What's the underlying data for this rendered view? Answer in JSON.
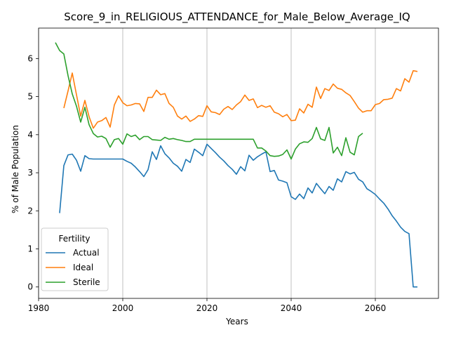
{
  "chart_data": {
    "type": "line",
    "title": "Score_9_in_RELIGIOUS_ATTENDANCE_for_Male_Below_Average_IQ",
    "xlabel": "Years",
    "ylabel": "% of Male Population",
    "xlim": [
      1980,
      2075
    ],
    "ylim": [
      -0.3,
      6.8
    ],
    "xticks": [
      1980,
      2000,
      2020,
      2040,
      2060
    ],
    "yticks": [
      0,
      1,
      2,
      3,
      4,
      5,
      6
    ],
    "grid": "vertical",
    "legend": {
      "title": "Fertility",
      "position": "lower-left"
    },
    "series": [
      {
        "name": "Actual",
        "color": "#1f77b4",
        "x": [
          1985,
          1986,
          1987,
          1988,
          1989,
          1990,
          1991,
          1992,
          1993,
          1994,
          1995,
          1996,
          1997,
          1998,
          1999,
          2000,
          2001,
          2002,
          2003,
          2004,
          2005,
          2006,
          2007,
          2008,
          2009,
          2010,
          2011,
          2012,
          2013,
          2014,
          2015,
          2016,
          2017,
          2018,
          2019,
          2020,
          2021,
          2022,
          2023,
          2024,
          2025,
          2026,
          2027,
          2028,
          2029,
          2030,
          2031,
          2032,
          2033,
          2034,
          2035,
          2036,
          2037,
          2038,
          2039,
          2040,
          2041,
          2042,
          2043,
          2044,
          2045,
          2046,
          2047,
          2048,
          2049,
          2050,
          2051,
          2052,
          2053,
          2054,
          2055,
          2056,
          2057,
          2058,
          2059,
          2060,
          2061,
          2062,
          2063,
          2064,
          2065,
          2066,
          2067,
          2068,
          2069,
          2070
        ],
        "values": [
          1.94,
          3.19,
          3.47,
          3.49,
          3.33,
          3.04,
          3.45,
          3.37,
          3.36,
          3.36,
          3.36,
          3.36,
          3.36,
          3.36,
          3.36,
          3.36,
          3.3,
          3.25,
          3.15,
          3.03,
          2.9,
          3.08,
          3.55,
          3.35,
          3.71,
          3.5,
          3.39,
          3.25,
          3.17,
          3.04,
          3.35,
          3.27,
          3.62,
          3.54,
          3.45,
          3.75,
          3.64,
          3.53,
          3.41,
          3.31,
          3.19,
          3.09,
          2.96,
          3.16,
          3.05,
          3.46,
          3.33,
          3.42,
          3.49,
          3.55,
          3.03,
          3.06,
          2.81,
          2.78,
          2.74,
          2.37,
          2.3,
          2.44,
          2.32,
          2.6,
          2.47,
          2.72,
          2.58,
          2.45,
          2.64,
          2.54,
          2.84,
          2.76,
          3.03,
          2.97,
          3.01,
          2.83,
          2.76,
          2.58,
          2.51,
          2.43,
          2.31,
          2.2,
          2.05,
          1.87,
          1.73,
          1.57,
          1.46,
          1.4,
          0.0,
          0.0
        ]
      },
      {
        "name": "Ideal",
        "color": "#ff7f0e",
        "x": [
          1986,
          1987,
          1988,
          1989,
          1990,
          1991,
          1992,
          1993,
          1994,
          1995,
          1996,
          1997,
          1998,
          1999,
          2000,
          2001,
          2002,
          2003,
          2004,
          2005,
          2006,
          2007,
          2008,
          2009,
          2010,
          2011,
          2012,
          2013,
          2014,
          2015,
          2016,
          2017,
          2018,
          2019,
          2020,
          2021,
          2022,
          2023,
          2024,
          2025,
          2026,
          2027,
          2028,
          2029,
          2030,
          2031,
          2032,
          2033,
          2034,
          2035,
          2036,
          2037,
          2038,
          2039,
          2040,
          2041,
          2042,
          2043,
          2044,
          2045,
          2046,
          2047,
          2048,
          2049,
          2050,
          2051,
          2052,
          2053,
          2054,
          2055,
          2056,
          2057,
          2058,
          2059,
          2060,
          2061,
          2062,
          2063,
          2064,
          2065,
          2066,
          2067,
          2068,
          2069,
          2070
        ],
        "values": [
          4.7,
          5.15,
          5.62,
          5.05,
          4.49,
          4.9,
          4.47,
          4.17,
          4.33,
          4.37,
          4.45,
          4.2,
          4.78,
          5.02,
          4.84,
          4.76,
          4.78,
          4.82,
          4.81,
          4.61,
          4.98,
          4.98,
          5.17,
          5.05,
          5.08,
          4.82,
          4.72,
          4.49,
          4.41,
          4.49,
          4.35,
          4.41,
          4.5,
          4.48,
          4.76,
          4.6,
          4.58,
          4.53,
          4.67,
          4.74,
          4.66,
          4.78,
          4.87,
          5.04,
          4.9,
          4.94,
          4.71,
          4.77,
          4.72,
          4.76,
          4.59,
          4.55,
          4.47,
          4.53,
          4.37,
          4.38,
          4.68,
          4.57,
          4.8,
          4.72,
          5.25,
          4.95,
          5.21,
          5.16,
          5.33,
          5.22,
          5.19,
          5.1,
          5.03,
          4.87,
          4.7,
          4.59,
          4.63,
          4.63,
          4.79,
          4.82,
          4.92,
          4.93,
          4.96,
          5.21,
          5.15,
          5.47,
          5.38,
          5.68,
          5.66
        ]
      },
      {
        "name": "Sterile",
        "color": "#2ca02c",
        "x": [
          1984,
          1985,
          1986,
          1987,
          1988,
          1989,
          1990,
          1991,
          1992,
          1993,
          1994,
          1995,
          1996,
          1997,
          1998,
          1999,
          2000,
          2001,
          2002,
          2003,
          2004,
          2005,
          2006,
          2007,
          2008,
          2009,
          2010,
          2011,
          2012,
          2013,
          2014,
          2015,
          2016,
          2017,
          2018,
          2019,
          2020,
          2021,
          2022,
          2023,
          2024,
          2025,
          2026,
          2027,
          2028,
          2029,
          2030,
          2031,
          2032,
          2033,
          2034,
          2035,
          2036,
          2037,
          2038,
          2039,
          2040,
          2041,
          2042,
          2043,
          2044,
          2045,
          2046,
          2047,
          2048,
          2049,
          2050,
          2051,
          2052,
          2053,
          2054,
          2055,
          2056,
          2057
        ],
        "values": [
          6.42,
          6.21,
          6.12,
          5.55,
          5.07,
          4.75,
          4.33,
          4.72,
          4.26,
          4.03,
          3.94,
          3.96,
          3.9,
          3.67,
          3.87,
          3.9,
          3.75,
          4.02,
          3.95,
          3.99,
          3.87,
          3.95,
          3.95,
          3.87,
          3.86,
          3.85,
          3.93,
          3.88,
          3.9,
          3.87,
          3.85,
          3.82,
          3.82,
          3.88,
          3.88,
          3.88,
          3.88,
          3.88,
          3.88,
          3.88,
          3.88,
          3.88,
          3.88,
          3.88,
          3.88,
          3.88,
          3.88,
          3.88,
          3.65,
          3.65,
          3.57,
          3.45,
          3.43,
          3.44,
          3.48,
          3.6,
          3.36,
          3.62,
          3.76,
          3.81,
          3.8,
          3.9,
          4.19,
          3.89,
          3.85,
          4.19,
          3.52,
          3.67,
          3.45,
          3.92,
          3.54,
          3.47,
          3.95,
          4.04
        ]
      }
    ]
  }
}
